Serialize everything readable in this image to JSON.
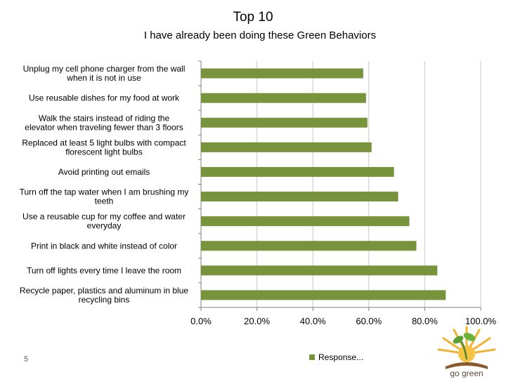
{
  "page_number": "5",
  "logo": {
    "text": "go green"
  },
  "chart_data": {
    "type": "bar",
    "orientation": "horizontal",
    "title": "Top 10",
    "subtitle": "I have already been doing these Green Behaviors",
    "categories": [
      "Unplug my cell phone charger from the wall when it is not in use",
      "Use reusable dishes for my food at work",
      "Walk the stairs instead of riding the elevator when traveling fewer than 3 floors",
      "Replaced at least 5 light bulbs with compact florescent light bulbs",
      "Avoid printing out emails",
      "Turn off the tap water when I am brushing my teeth",
      "Use a reusable cup for my coffee and water everyday",
      "Print in black and white instead of color",
      "Turn off lights every time I leave the room",
      "Recycle paper, plastics and aluminum in blue recycling bins"
    ],
    "series": [
      {
        "name": "Response...",
        "values": [
          58,
          59,
          59.5,
          61,
          69,
          70.5,
          74.5,
          77,
          84.5,
          87.5
        ]
      }
    ],
    "xlim": [
      0,
      100
    ],
    "x_ticks": [
      "0.0%",
      "20.0%",
      "40.0%",
      "60.0%",
      "80.0%",
      "100.0%"
    ],
    "grid": true,
    "legend_position": "bottom",
    "colors": {
      "bar": "#77933c",
      "grid": "#c8c8c8",
      "axis": "#808080"
    }
  }
}
